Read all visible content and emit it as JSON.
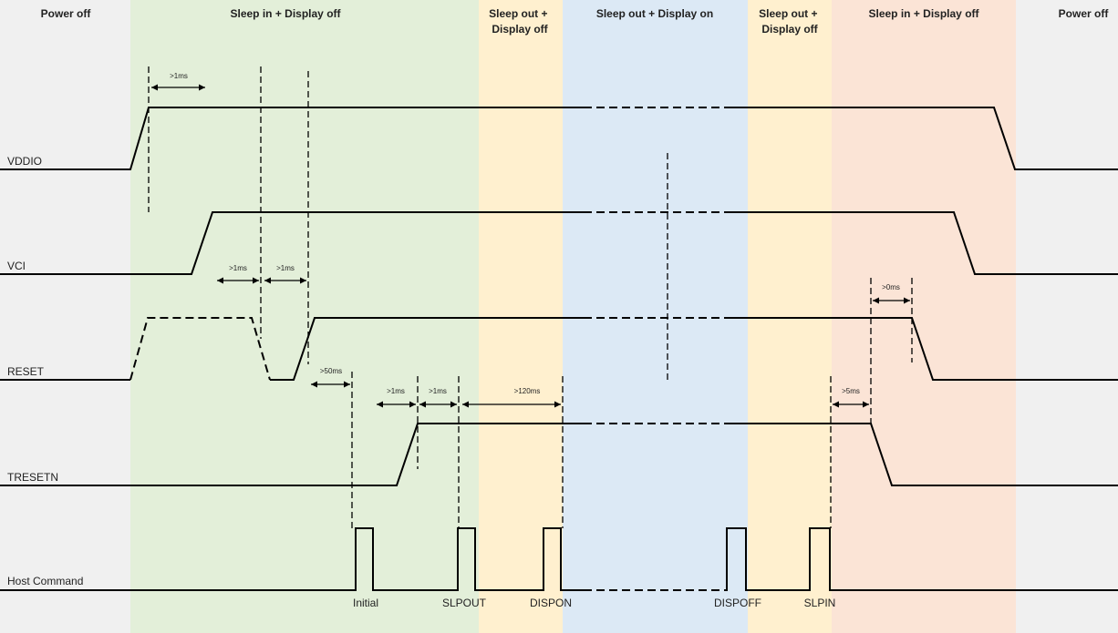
{
  "phases": [
    {
      "label": "Power off",
      "color": "#f0f0f0"
    },
    {
      "label": "Sleep in + Display off",
      "color": "#e3efd9"
    },
    {
      "label": "Sleep out + Display off",
      "color": "#fff0cf"
    },
    {
      "label": "Sleep out + Display on",
      "color": "#dce9f5"
    },
    {
      "label": "Sleep out + Display off",
      "color": "#fff0cf"
    },
    {
      "label": "Sleep in + Display off",
      "color": "#fbe4d6"
    },
    {
      "label": "Power off",
      "color": "#f0f0f0"
    }
  ],
  "signals": [
    "VDDIO",
    "VCI",
    "RESET",
    "TRESETN",
    "Host Command"
  ],
  "commands": [
    "Initial",
    "SLPOUT",
    "DISPON",
    "DISPOFF",
    "SLPIN"
  ],
  "timings": [
    ">1ms",
    ">1ms",
    ">1ms",
    ">0ms",
    ">50ms",
    ">1ms",
    ">1ms",
    ">120ms",
    ">5ms"
  ]
}
